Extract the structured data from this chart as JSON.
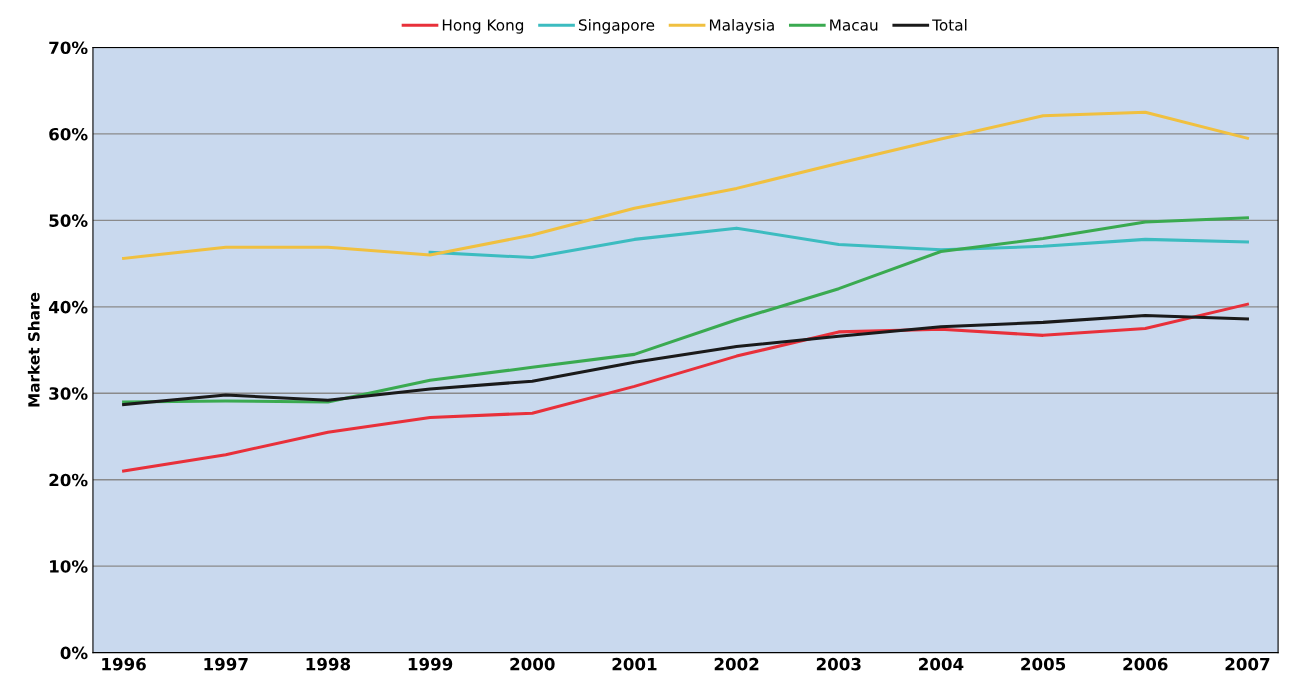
{
  "chart_data": {
    "type": "line",
    "ylabel": "Market Share",
    "categories": [
      "1996",
      "1997",
      "1998",
      "1999",
      "2000",
      "2001",
      "2002",
      "2003",
      "2004",
      "2005",
      "2006",
      "2007"
    ],
    "series": [
      {
        "name": "Hong Kong",
        "color": "#e8303a",
        "values": [
          21.0,
          22.9,
          25.5,
          27.2,
          27.7,
          30.8,
          34.3,
          37.1,
          37.4,
          36.7,
          37.5,
          40.3
        ]
      },
      {
        "name": "Singapore",
        "color": "#3cbcc0",
        "values": [
          null,
          null,
          null,
          46.3,
          45.7,
          47.8,
          49.1,
          47.2,
          46.6,
          47.0,
          47.8,
          47.5
        ]
      },
      {
        "name": "Malaysia",
        "color": "#f0c040",
        "values": [
          45.6,
          46.9,
          46.9,
          46.0,
          48.3,
          51.4,
          53.7,
          56.6,
          59.4,
          62.1,
          62.5,
          59.5
        ]
      },
      {
        "name": "Macau",
        "color": "#3aaa50",
        "values": [
          29.0,
          29.1,
          29.0,
          31.5,
          33.0,
          34.5,
          38.5,
          42.1,
          46.4,
          47.9,
          49.8,
          50.3
        ]
      },
      {
        "name": "Total",
        "color": "#1a1a1a",
        "values": [
          28.7,
          29.8,
          29.2,
          30.5,
          31.4,
          33.6,
          35.4,
          36.6,
          37.7,
          38.2,
          39.0,
          38.6
        ]
      }
    ],
    "ylim": [
      0,
      70
    ],
    "yticks": [
      {
        "value": 0,
        "label": "0%"
      },
      {
        "value": 10,
        "label": "10%"
      },
      {
        "value": 20,
        "label": "20%"
      },
      {
        "value": 30,
        "label": "30%"
      },
      {
        "value": 40,
        "label": "40%"
      },
      {
        "value": 50,
        "label": "50%"
      },
      {
        "value": 60,
        "label": "60%"
      },
      {
        "value": 70,
        "label": "70%"
      }
    ],
    "grid": "y",
    "legend": "top",
    "marker": "none",
    "line_style": "solid"
  }
}
